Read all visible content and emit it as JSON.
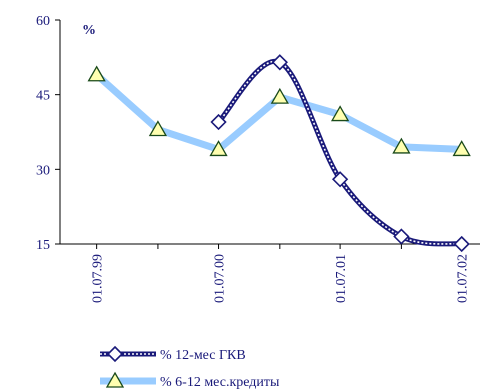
{
  "chart_data": {
    "type": "line",
    "title": "",
    "xlabel": "",
    "ylabel": "",
    "unit_label": "%",
    "ylim": [
      15,
      60
    ],
    "y_ticks": [
      15,
      30,
      45,
      60
    ],
    "x_ticks": [
      "01.07.99",
      "01.07.00",
      "01.07.01",
      "01.07.02"
    ],
    "x_domain": [
      "01.07.99",
      "01.07.02"
    ],
    "grid": false,
    "legend_position": "bottom",
    "series": [
      {
        "name": "% 12-мес ГКВ",
        "color": "#1a1a7a",
        "line_style": "thick-dotted-dark",
        "marker": "diamond",
        "points": [
          {
            "x": "01.07.00",
            "y": 39.5
          },
          {
            "x": "01.01.01",
            "y": 51.5
          },
          {
            "x": "01.07.01",
            "y": 28.0
          },
          {
            "x": "01.01.02",
            "y": 16.5
          },
          {
            "x": "01.07.02",
            "y": 15.0
          }
        ]
      },
      {
        "name": "% 6-12 мес.кредиты",
        "color": "#99ccff",
        "line_style": "solid",
        "marker": "triangle",
        "marker_fill": "#ffffb0",
        "points": [
          {
            "x": "01.07.99",
            "y": 49.0
          },
          {
            "x": "01.01.00",
            "y": 38.0
          },
          {
            "x": "01.07.00",
            "y": 34.0
          },
          {
            "x": "01.01.01",
            "y": 44.5
          },
          {
            "x": "01.07.01",
            "y": 41.0
          },
          {
            "x": "01.01.02",
            "y": 34.5
          },
          {
            "x": "01.07.02",
            "y": 34.0
          }
        ]
      }
    ]
  }
}
